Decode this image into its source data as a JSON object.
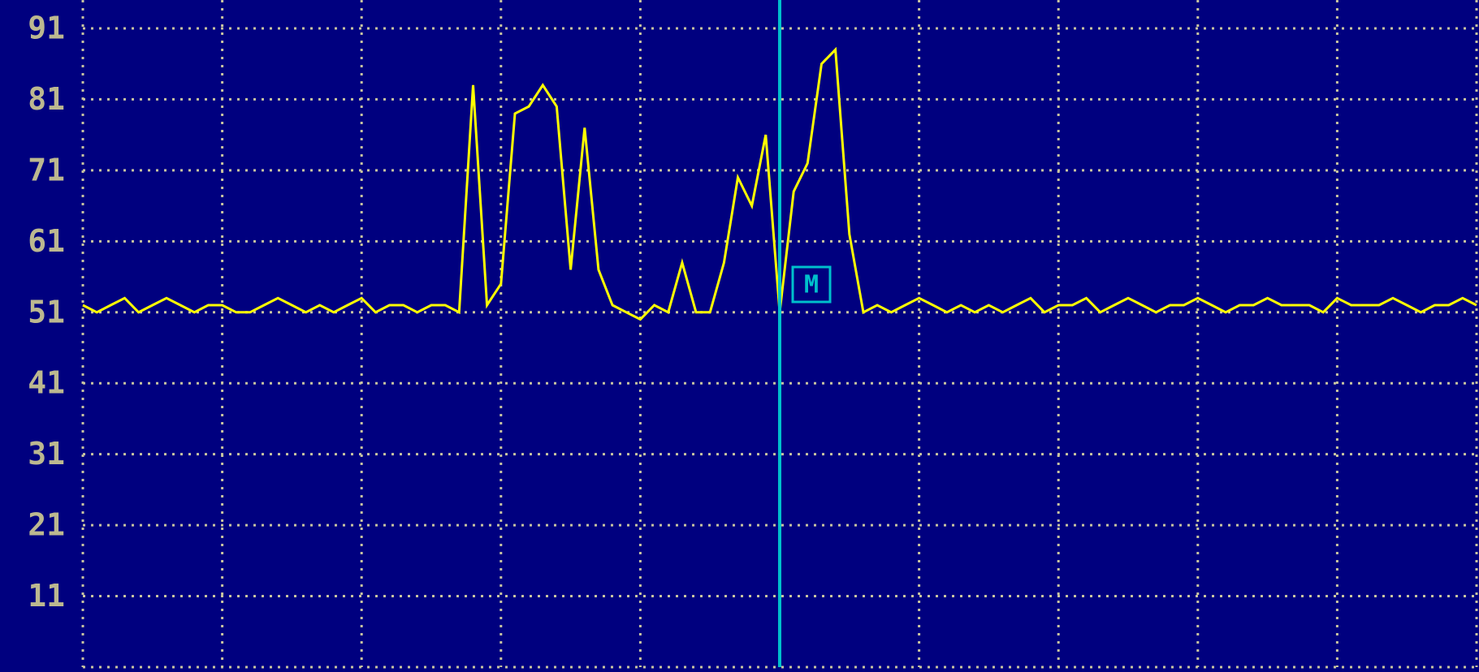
{
  "chart_data": {
    "type": "line",
    "series": [
      {
        "color": "#ffff00",
        "values": [
          52,
          51,
          52,
          53,
          51,
          52,
          53,
          52,
          51,
          52,
          52,
          51,
          51,
          52,
          53,
          52,
          51,
          52,
          51,
          52,
          53,
          51,
          52,
          52,
          51,
          52,
          52,
          51,
          83,
          52,
          55,
          79,
          80,
          83,
          80,
          57,
          77,
          57,
          52,
          51,
          50,
          52,
          51,
          58,
          51,
          51,
          58,
          70,
          66,
          76,
          51,
          68,
          72,
          86,
          88,
          62,
          51,
          52,
          51,
          52,
          53,
          52,
          51,
          52,
          51,
          52,
          51,
          52,
          53,
          51,
          52,
          52,
          53,
          51,
          52,
          53,
          52,
          51,
          52,
          52,
          53,
          52,
          51,
          52,
          52,
          53,
          52,
          52,
          52,
          51,
          53,
          52,
          52,
          52,
          53,
          52,
          51,
          52,
          52,
          53,
          52
        ]
      }
    ],
    "ylim": [
      1,
      95
    ],
    "yticks": [
      11,
      21,
      31,
      41,
      51,
      61,
      71,
      81,
      91
    ],
    "grid": true,
    "marker": {
      "label": "M",
      "index": 50,
      "color": "#00c0cc"
    }
  }
}
